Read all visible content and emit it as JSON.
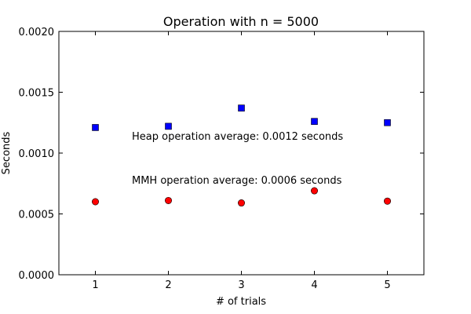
{
  "chart_data": {
    "type": "scatter",
    "title": "Operation with n = 5000",
    "xlabel": "# of trials",
    "ylabel": "Seconds",
    "xlim": [
      0.5,
      5.5
    ],
    "ylim": [
      0,
      0.002
    ],
    "xticks": [
      "1",
      "2",
      "3",
      "4",
      "5"
    ],
    "xtick_values": [
      1,
      2,
      3,
      4,
      5
    ],
    "yticks": [
      "0.0000",
      "0.0005",
      "0.0010",
      "0.0015",
      "0.0020"
    ],
    "ytick_values": [
      0,
      0.0005,
      0.001,
      0.0015,
      0.002
    ],
    "grid": false,
    "series": [
      {
        "marker": "square",
        "color": "#0000ff",
        "x": [
          1,
          2,
          3,
          4,
          5
        ],
        "y": [
          0.00121,
          0.00122,
          0.00137,
          0.00126,
          0.00125
        ]
      },
      {
        "marker": "circle",
        "color": "#ff0000",
        "x": [
          1,
          2,
          3,
          4,
          5
        ],
        "y": [
          0.0006,
          0.00061,
          0.00059,
          0.00069,
          0.000605
        ]
      }
    ],
    "annotations": [
      {
        "text": "Heap operation average: 0.0012 seconds",
        "x": 1.5,
        "y": 0.00111
      },
      {
        "text": "MMH operation average: 0.0006 seconds",
        "x": 1.5,
        "y": 0.00075
      }
    ]
  }
}
